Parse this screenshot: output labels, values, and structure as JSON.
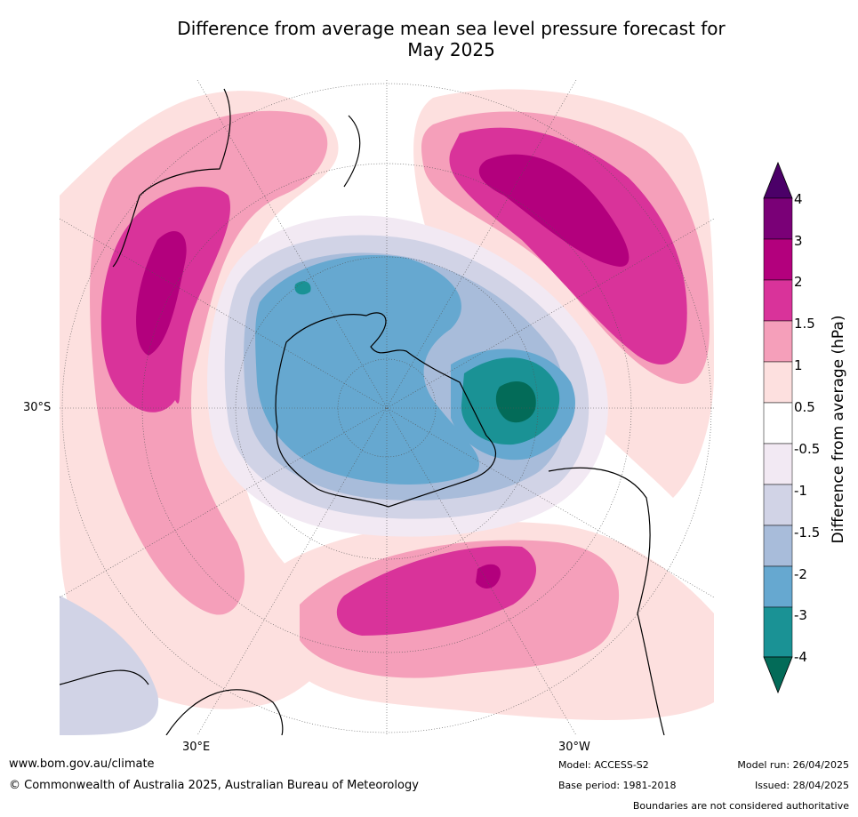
{
  "title": {
    "line1": "Difference from average mean sea level pressure forecast for",
    "line2": "May 2025"
  },
  "map": {
    "projection": "south polar stereographic",
    "lat_labels": [
      "30°S"
    ],
    "lon_labels": [
      "30°E",
      "30°W"
    ]
  },
  "colorbar": {
    "title": "Difference from average (hPa)",
    "labels": [
      "4",
      "3",
      "2",
      "1.5",
      "1",
      "0.5",
      "-0.5",
      "-1",
      "-1.5",
      "-2",
      "-3",
      "-4"
    ],
    "colors": [
      "#4b0068",
      "#7a0077",
      "#b3007d",
      "#d9339a",
      "#f59fba",
      "#fde0df",
      "#ffffff",
      "#f2e9f3",
      "#d1d3e6",
      "#a8bcda",
      "#66a8d0",
      "#1a9295",
      "#036b58"
    ]
  },
  "footer": {
    "website": "www.bom.gov.au/climate",
    "copyright": "© Commonwealth of Australia 2025, Australian Bureau of Meteorology",
    "model": "Model: ACCESS-S2",
    "base_period": "Base period: 1981-2018",
    "model_run": "Model run: 26/04/2025",
    "issued": "Issued: 28/04/2025",
    "disclaimer": "Boundaries are not considered authoritative"
  }
}
